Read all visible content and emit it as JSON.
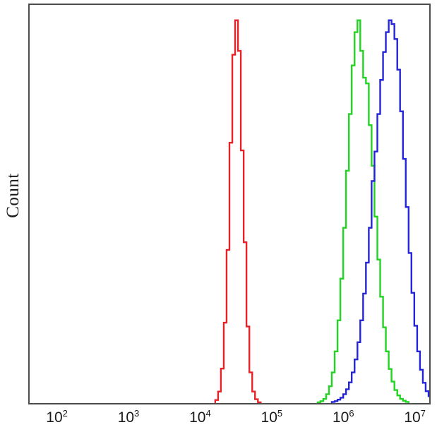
{
  "chart_data": {
    "type": "line",
    "subtype": "flow-cytometry-step-histogram",
    "title": "",
    "xlabel": "",
    "ylabel": "Count",
    "x_scale": "log10",
    "xlim_log10": [
      1.6,
      7.22
    ],
    "ylim": [
      0,
      104
    ],
    "grid": false,
    "legend": "none",
    "border_color": "#4d4d4d",
    "background_color": "#ffffff",
    "x_ticks": [
      {
        "base": "10",
        "exponent": "2",
        "log10": 2
      },
      {
        "base": "10",
        "exponent": "3",
        "log10": 3
      },
      {
        "base": "10",
        "exponent": "4",
        "log10": 4
      },
      {
        "base": "10",
        "exponent": "5",
        "log10": 5
      },
      {
        "base": "10",
        "exponent": "6",
        "log10": 6
      },
      {
        "base": "10",
        "exponent": "7",
        "log10": 7
      }
    ],
    "series": [
      {
        "name": "red-population",
        "color": "#e62228",
        "peak_x_value": 31000,
        "peak_log10x": 4.49,
        "peak_count": 100,
        "points_log10x": [
          4.21,
          4.25,
          4.29,
          4.33,
          4.37,
          4.41,
          4.45,
          4.49,
          4.53,
          4.57,
          4.61,
          4.65,
          4.69,
          4.73,
          4.77,
          4.81
        ],
        "counts": [
          0.8,
          3,
          9,
          21,
          40,
          68,
          91,
          100,
          92,
          66,
          42,
          20,
          8,
          3,
          1,
          0.2
        ]
      },
      {
        "name": "green-population",
        "color": "#1fd51f",
        "peak_x_value": 1600000,
        "peak_log10x": 6.21,
        "peak_count": 100,
        "points_log10x": [
          5.65,
          5.69,
          5.73,
          5.77,
          5.81,
          5.85,
          5.89,
          5.93,
          5.97,
          6.01,
          6.05,
          6.09,
          6.13,
          6.17,
          6.21,
          6.25,
          6.29,
          6.33,
          6.37,
          6.41,
          6.45,
          6.49,
          6.53,
          6.57,
          6.61,
          6.65,
          6.69,
          6.73,
          6.77,
          6.81,
          6.85,
          6.89
        ],
        "counts": [
          0.2,
          0.5,
          1.1,
          2.3,
          4.4,
          8,
          13.5,
          21.6,
          32.5,
          45.8,
          60.7,
          75.5,
          88.2,
          96.9,
          100,
          92,
          85,
          83.5,
          72.6,
          62,
          48.7,
          37.5,
          27.8,
          19.8,
          13.5,
          8.9,
          5.6,
          3.4,
          2,
          1.1,
          0.6,
          0.3
        ]
      },
      {
        "name": "blue-population",
        "color": "#2323d9",
        "peak_x_value": 4700000,
        "peak_log10x": 6.67,
        "peak_count": 100,
        "points_log10x": [
          5.85,
          5.89,
          5.93,
          5.97,
          6.01,
          6.05,
          6.09,
          6.13,
          6.17,
          6.21,
          6.25,
          6.29,
          6.33,
          6.37,
          6.41,
          6.45,
          6.49,
          6.53,
          6.57,
          6.61,
          6.65,
          6.69,
          6.73,
          6.77,
          6.81,
          6.85,
          6.89,
          6.93,
          6.97,
          7.01,
          7.05,
          7.09,
          7.13,
          7.17,
          7.21,
          7.25
        ],
        "counts": [
          0.3,
          0.5,
          0.9,
          1.4,
          2.3,
          3.6,
          5.4,
          8,
          11.4,
          15.9,
          21.6,
          28.6,
          36.7,
          45.8,
          58,
          65.7,
          75.5,
          84.4,
          91.7,
          96.9,
          100,
          99,
          95.1,
          87.1,
          76.2,
          63.8,
          51.2,
          39.2,
          28.8,
          20.2,
          13.5,
          8.7,
          5.3,
          3.1,
          1.8,
          1
        ]
      }
    ]
  }
}
